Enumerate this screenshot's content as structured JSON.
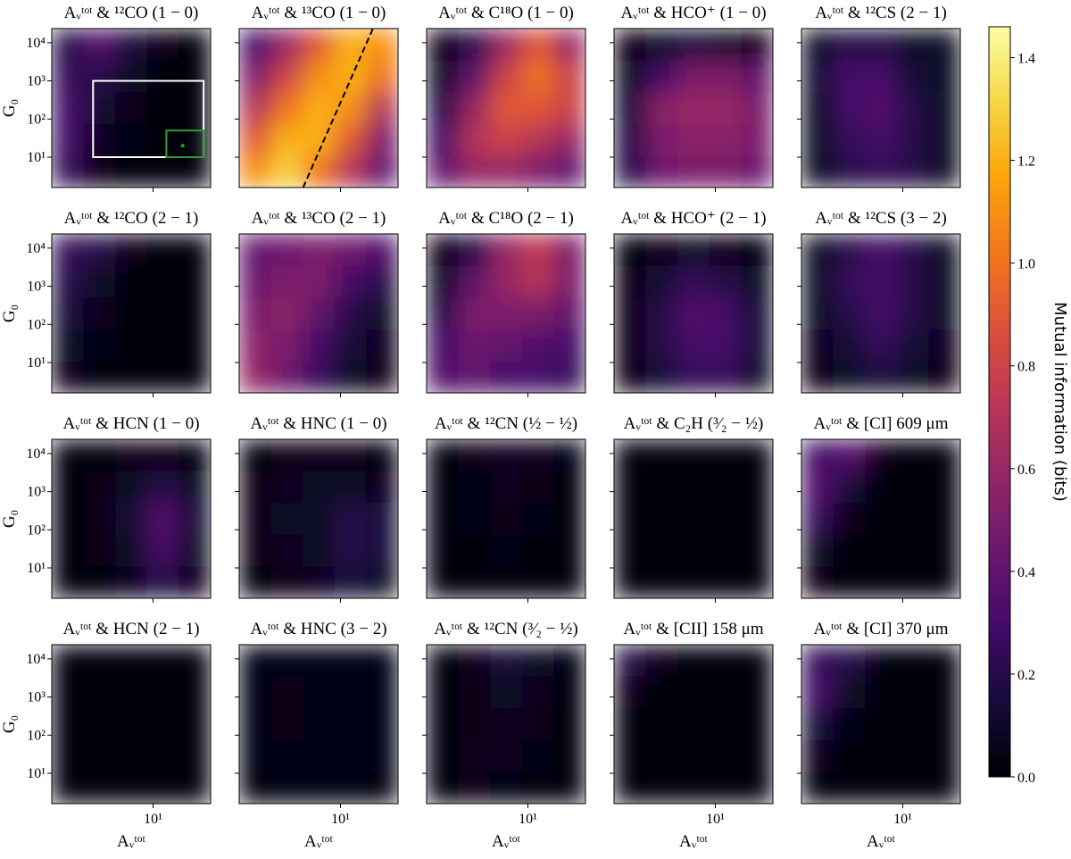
{
  "chart_data": {
    "type": "heatmap",
    "xlabel": "Aᵥᵗᵒᵗ",
    "ylabel": "G₀",
    "xscale": "log",
    "yscale": "log",
    "xlim": [
      2.5,
      22
    ],
    "ylim": [
      1.6,
      23500
    ],
    "xticks": [
      {
        "value": 10,
        "label": "10¹"
      }
    ],
    "yticks": [
      {
        "value": 10,
        "label": "10¹"
      },
      {
        "value": 100,
        "label": "10²"
      },
      {
        "value": 1000,
        "label": "10³"
      },
      {
        "value": 10000,
        "label": "10⁴"
      }
    ],
    "xbins": [
      2.5,
      3.86,
      5.97,
      9.22,
      14.2,
      22
    ],
    "ybins": [
      23500,
      3440,
      505,
      74,
      10.9,
      1.6
    ],
    "colormap": "inferno",
    "colorbar": {
      "label": "Mutual information (bits)",
      "lim": [
        0,
        1.46
      ],
      "ticks": [
        {
          "value": 0,
          "label": "0.0"
        },
        {
          "value": 0.2,
          "label": "0.2"
        },
        {
          "value": 0.4,
          "label": "0.4"
        },
        {
          "value": 0.6,
          "label": "0.6"
        },
        {
          "value": 0.8,
          "label": "0.8"
        },
        {
          "value": 1,
          "label": "1.0"
        },
        {
          "value": 1.2,
          "label": "1.2"
        },
        {
          "value": 1.4,
          "label": "1.4"
        }
      ]
    },
    "panels": [
      {
        "title": "Aᵥᵗᵒᵗ & ¹²CO (1 − 0)",
        "values": [
          [
            0.2,
            0.35,
            0.15,
            0.05,
            0.03
          ],
          [
            0.25,
            0.2,
            0.1,
            0.03,
            0.02
          ],
          [
            0.3,
            0.12,
            0.05,
            0.02,
            0.02
          ],
          [
            0.3,
            0.08,
            0.04,
            0.02,
            0.02
          ],
          [
            0.25,
            0.05,
            0.03,
            0.02,
            0.02
          ]
        ],
        "rects": [
          {
            "x": [
              4.4,
              20
            ],
            "y": [
              10,
              1000
            ],
            "color": "#ffffff"
          },
          {
            "x": [
              12,
              20
            ],
            "y": [
              10,
              50
            ],
            "color": "#2ca02c"
          }
        ],
        "points": [
          {
            "x": 15,
            "y": 20,
            "color": "#2ca02c"
          }
        ]
      },
      {
        "title": "Aᵥᵗᵒᵗ & ¹³CO (1 − 0)",
        "values": [
          [
            0.3,
            0.6,
            0.9,
            1.2,
            1.1
          ],
          [
            0.5,
            0.8,
            1.1,
            1.2,
            1.0
          ],
          [
            0.7,
            1.0,
            1.2,
            1.1,
            0.7
          ],
          [
            0.9,
            1.2,
            1.2,
            0.9,
            0.5
          ],
          [
            1.1,
            1.3,
            1.0,
            0.7,
            0.4
          ]
        ],
        "lines": [
          {
            "x": [
              6,
              15.6
            ],
            "y": [
              1.6,
              23500
            ],
            "color": "#000000",
            "dashed": true
          }
        ]
      },
      {
        "title": "Aᵥᵗᵒᵗ & C¹⁸O (1 − 0)",
        "values": [
          [
            0.05,
            0.2,
            0.6,
            0.9,
            0.6
          ],
          [
            0.1,
            0.4,
            0.8,
            1.0,
            0.8
          ],
          [
            0.2,
            0.6,
            0.9,
            0.9,
            0.8
          ],
          [
            0.3,
            0.7,
            0.8,
            0.7,
            0.6
          ],
          [
            0.4,
            0.6,
            0.6,
            0.5,
            0.4
          ]
        ]
      },
      {
        "title": "Aᵥᵗᵒᵗ & HCO⁺ (1 − 0)",
        "values": [
          [
            0.05,
            0.1,
            0.15,
            0.1,
            0.05
          ],
          [
            0.1,
            0.3,
            0.5,
            0.5,
            0.4
          ],
          [
            0.15,
            0.55,
            0.6,
            0.6,
            0.5
          ],
          [
            0.2,
            0.5,
            0.55,
            0.55,
            0.5
          ],
          [
            0.2,
            0.45,
            0.5,
            0.5,
            0.45
          ]
        ]
      },
      {
        "title": "Aᵥᵗᵒᵗ & ¹²CS (2 − 1)",
        "values": [
          [
            0.1,
            0.2,
            0.2,
            0.1,
            0.1
          ],
          [
            0.15,
            0.3,
            0.3,
            0.15,
            0.1
          ],
          [
            0.1,
            0.3,
            0.35,
            0.2,
            0.1
          ],
          [
            0.1,
            0.25,
            0.3,
            0.2,
            0.1
          ],
          [
            0.1,
            0.2,
            0.25,
            0.2,
            0.1
          ]
        ]
      },
      {
        "title": "Aᵥᵗᵒᵗ & ¹²CO (2 − 1)",
        "values": [
          [
            0.25,
            0.2,
            0.05,
            0.02,
            0.02
          ],
          [
            0.2,
            0.1,
            0.03,
            0.02,
            0.02
          ],
          [
            0.15,
            0.06,
            0.02,
            0.02,
            0.02
          ],
          [
            0.1,
            0.04,
            0.02,
            0.02,
            0.02
          ],
          [
            0.08,
            0.03,
            0.02,
            0.02,
            0.02
          ]
        ]
      },
      {
        "title": "Aᵥᵗᵒᵗ & ¹³CO (2 − 1)",
        "values": [
          [
            0.4,
            0.45,
            0.5,
            0.45,
            0.35
          ],
          [
            0.45,
            0.5,
            0.5,
            0.3,
            0.2
          ],
          [
            0.5,
            0.55,
            0.4,
            0.2,
            0.1
          ],
          [
            0.55,
            0.5,
            0.3,
            0.15,
            0.08
          ],
          [
            0.6,
            0.45,
            0.25,
            0.1,
            0.05
          ]
        ]
      },
      {
        "title": "Aᵥᵗᵒᵗ & C¹⁸O (2 − 1)",
        "values": [
          [
            0.05,
            0.2,
            0.6,
            0.75,
            0.5
          ],
          [
            0.1,
            0.4,
            0.6,
            0.7,
            0.5
          ],
          [
            0.2,
            0.5,
            0.5,
            0.5,
            0.4
          ],
          [
            0.3,
            0.45,
            0.4,
            0.35,
            0.3
          ],
          [
            0.35,
            0.4,
            0.3,
            0.3,
            0.25
          ]
        ]
      },
      {
        "title": "Aᵥᵗᵒᵗ & HCO⁺ (2 − 1)",
        "values": [
          [
            0.03,
            0.05,
            0.1,
            0.05,
            0.03
          ],
          [
            0.05,
            0.15,
            0.25,
            0.2,
            0.1
          ],
          [
            0.05,
            0.2,
            0.35,
            0.3,
            0.15
          ],
          [
            0.05,
            0.2,
            0.3,
            0.3,
            0.15
          ],
          [
            0.05,
            0.15,
            0.25,
            0.25,
            0.1
          ]
        ]
      },
      {
        "title": "Aᵥᵗᵒᵗ & ¹²CS (3 − 2)",
        "values": [
          [
            0.1,
            0.2,
            0.3,
            0.2,
            0.1
          ],
          [
            0.1,
            0.25,
            0.3,
            0.2,
            0.1
          ],
          [
            0.1,
            0.2,
            0.3,
            0.2,
            0.1
          ],
          [
            0.08,
            0.15,
            0.25,
            0.15,
            0.08
          ],
          [
            0.05,
            0.1,
            0.15,
            0.1,
            0.05
          ]
        ]
      },
      {
        "title": "Aᵥᵗᵒᵗ & HCN (1 − 0)",
        "values": [
          [
            0.03,
            0.03,
            0.05,
            0.05,
            0.03
          ],
          [
            0.03,
            0.05,
            0.1,
            0.2,
            0.1
          ],
          [
            0.03,
            0.05,
            0.15,
            0.35,
            0.15
          ],
          [
            0.02,
            0.05,
            0.1,
            0.3,
            0.1
          ],
          [
            0.02,
            0.03,
            0.08,
            0.2,
            0.08
          ]
        ]
      },
      {
        "title": "Aᵥᵗᵒᵗ & HNC (1 − 0)",
        "values": [
          [
            0.03,
            0.05,
            0.05,
            0.05,
            0.03
          ],
          [
            0.05,
            0.08,
            0.1,
            0.1,
            0.08
          ],
          [
            0.05,
            0.1,
            0.1,
            0.2,
            0.15
          ],
          [
            0.05,
            0.08,
            0.1,
            0.2,
            0.15
          ],
          [
            0.03,
            0.05,
            0.08,
            0.15,
            0.1
          ]
        ]
      },
      {
        "title": "Aᵥᵗᵒᵗ & ¹²CN (½ − ½)",
        "values": [
          [
            0.03,
            0.05,
            0.08,
            0.06,
            0.04
          ],
          [
            0.03,
            0.04,
            0.06,
            0.05,
            0.03
          ],
          [
            0.03,
            0.04,
            0.05,
            0.04,
            0.03
          ],
          [
            0.02,
            0.03,
            0.04,
            0.03,
            0.02
          ],
          [
            0.02,
            0.03,
            0.03,
            0.03,
            0.02
          ]
        ]
      },
      {
        "title": "Aᵥᵗᵒᵗ & C₂H (³⁄₂ − ½)",
        "values": [
          [
            0.02,
            0.02,
            0.02,
            0.02,
            0.02
          ],
          [
            0.02,
            0.02,
            0.02,
            0.02,
            0.02
          ],
          [
            0.02,
            0.02,
            0.02,
            0.02,
            0.02
          ],
          [
            0.02,
            0.02,
            0.02,
            0.02,
            0.02
          ],
          [
            0.02,
            0.02,
            0.02,
            0.02,
            0.02
          ]
        ]
      },
      {
        "title": "Aᵥᵗᵒᵗ & [CI] 609 μm",
        "values": [
          [
            0.3,
            0.35,
            0.05,
            0.02,
            0.02
          ],
          [
            0.35,
            0.15,
            0.03,
            0.02,
            0.02
          ],
          [
            0.25,
            0.05,
            0.02,
            0.02,
            0.02
          ],
          [
            0.1,
            0.03,
            0.02,
            0.02,
            0.02
          ],
          [
            0.05,
            0.02,
            0.02,
            0.02,
            0.02
          ]
        ]
      },
      {
        "title": "Aᵥᵗᵒᵗ & HCN (2 − 1)",
        "values": [
          [
            0.03,
            0.03,
            0.03,
            0.03,
            0.03
          ],
          [
            0.03,
            0.03,
            0.03,
            0.03,
            0.03
          ],
          [
            0.03,
            0.03,
            0.03,
            0.03,
            0.03
          ],
          [
            0.03,
            0.03,
            0.03,
            0.03,
            0.03
          ],
          [
            0.03,
            0.03,
            0.03,
            0.03,
            0.03
          ]
        ]
      },
      {
        "title": "Aᵥᵗᵒᵗ & HNC (3 − 2)",
        "values": [
          [
            0.04,
            0.04,
            0.04,
            0.04,
            0.04
          ],
          [
            0.04,
            0.05,
            0.04,
            0.04,
            0.04
          ],
          [
            0.04,
            0.05,
            0.04,
            0.04,
            0.04
          ],
          [
            0.04,
            0.04,
            0.04,
            0.04,
            0.04
          ],
          [
            0.03,
            0.04,
            0.04,
            0.04,
            0.03
          ]
        ]
      },
      {
        "title": "Aᵥᵗᵒᵗ & ¹²CN (³⁄₂ − ½)",
        "values": [
          [
            0.02,
            0.05,
            0.15,
            0.1,
            0.03
          ],
          [
            0.02,
            0.05,
            0.1,
            0.06,
            0.03
          ],
          [
            0.02,
            0.05,
            0.08,
            0.05,
            0.03
          ],
          [
            0.02,
            0.06,
            0.06,
            0.04,
            0.02
          ],
          [
            0.02,
            0.05,
            0.04,
            0.03,
            0.02
          ]
        ]
      },
      {
        "title": "Aᵥᵗᵒᵗ & [CII] 158 μm",
        "values": [
          [
            0.2,
            0.05,
            0.02,
            0.02,
            0.02
          ],
          [
            0.05,
            0.02,
            0.02,
            0.02,
            0.02
          ],
          [
            0.02,
            0.02,
            0.02,
            0.02,
            0.02
          ],
          [
            0.02,
            0.02,
            0.02,
            0.02,
            0.02
          ],
          [
            0.02,
            0.02,
            0.02,
            0.02,
            0.02
          ]
        ]
      },
      {
        "title": "Aᵥᵗᵒᵗ & [CI] 370 μm",
        "values": [
          [
            0.25,
            0.2,
            0.03,
            0.02,
            0.02
          ],
          [
            0.3,
            0.1,
            0.02,
            0.02,
            0.02
          ],
          [
            0.15,
            0.04,
            0.02,
            0.02,
            0.02
          ],
          [
            0.06,
            0.02,
            0.02,
            0.02,
            0.02
          ],
          [
            0.03,
            0.02,
            0.02,
            0.02,
            0.02
          ]
        ]
      }
    ]
  }
}
